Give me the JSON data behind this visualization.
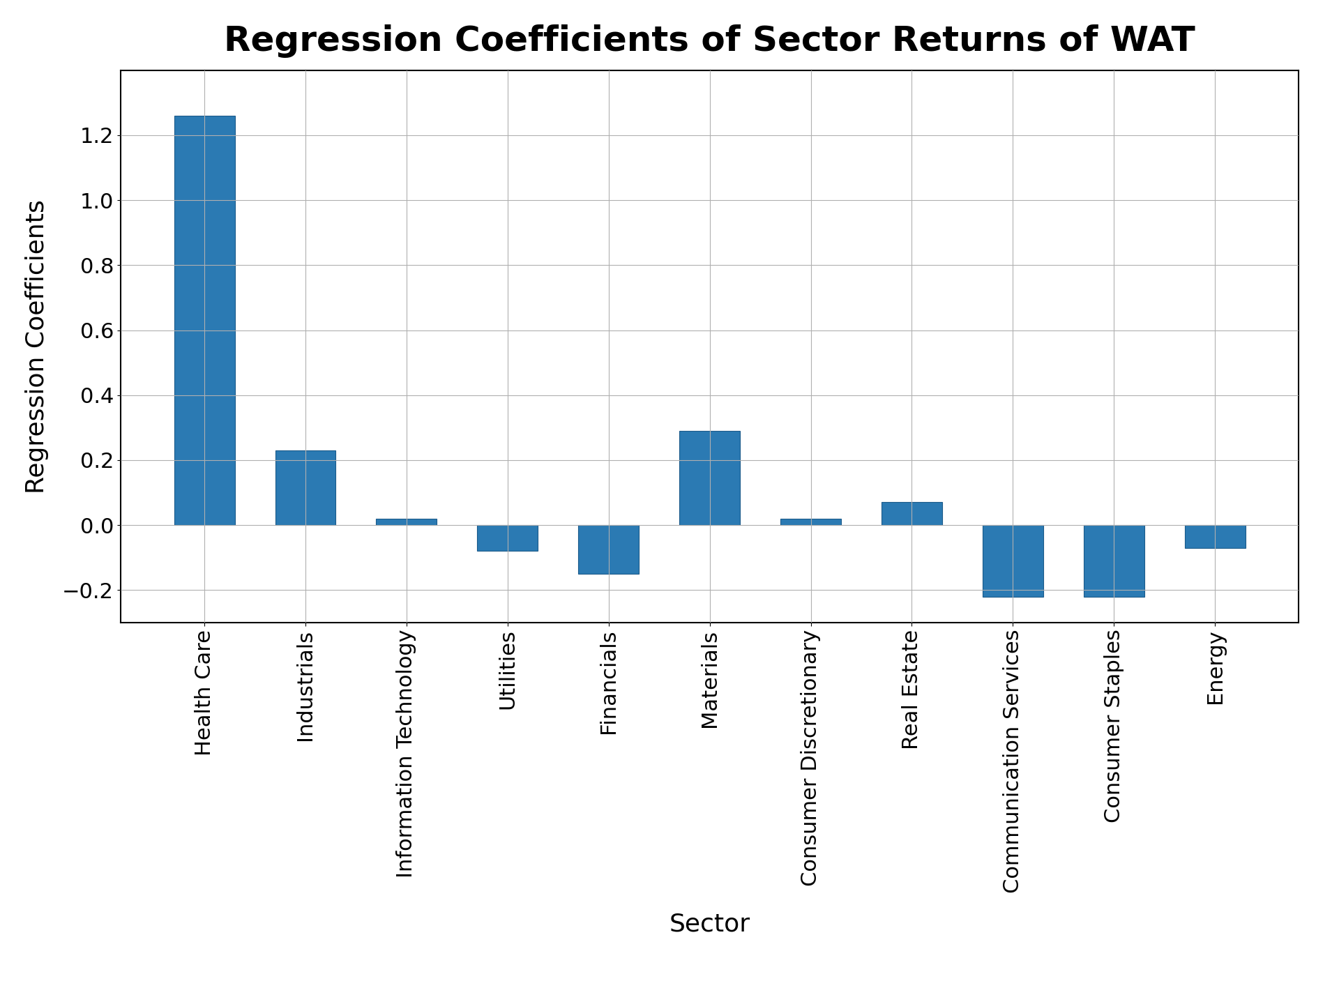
{
  "title": "Regression Coefficients of Sector Returns of WAT",
  "xlabel": "Sector",
  "ylabel": "Regression Coefficients",
  "categories": [
    "Health Care",
    "Industrials",
    "Information Technology",
    "Utilities",
    "Financials",
    "Materials",
    "Consumer Discretionary",
    "Real Estate",
    "Communication Services",
    "Consumer Staples",
    "Energy"
  ],
  "values": [
    1.26,
    0.23,
    0.02,
    -0.08,
    -0.15,
    0.29,
    0.02,
    0.07,
    -0.22,
    -0.22,
    -0.07
  ],
  "bar_color": "#2b7ab3",
  "bar_edgecolor": "#1a5a8a",
  "ylim": [
    -0.3,
    1.4
  ],
  "yticks": [
    -0.2,
    0.0,
    0.2,
    0.4,
    0.6,
    0.8,
    1.0,
    1.2
  ],
  "grid_color": "#b0b0b0",
  "background_color": "#ffffff",
  "title_fontsize": 36,
  "label_fontsize": 26,
  "tick_fontsize": 22,
  "xtick_fontsize": 22
}
